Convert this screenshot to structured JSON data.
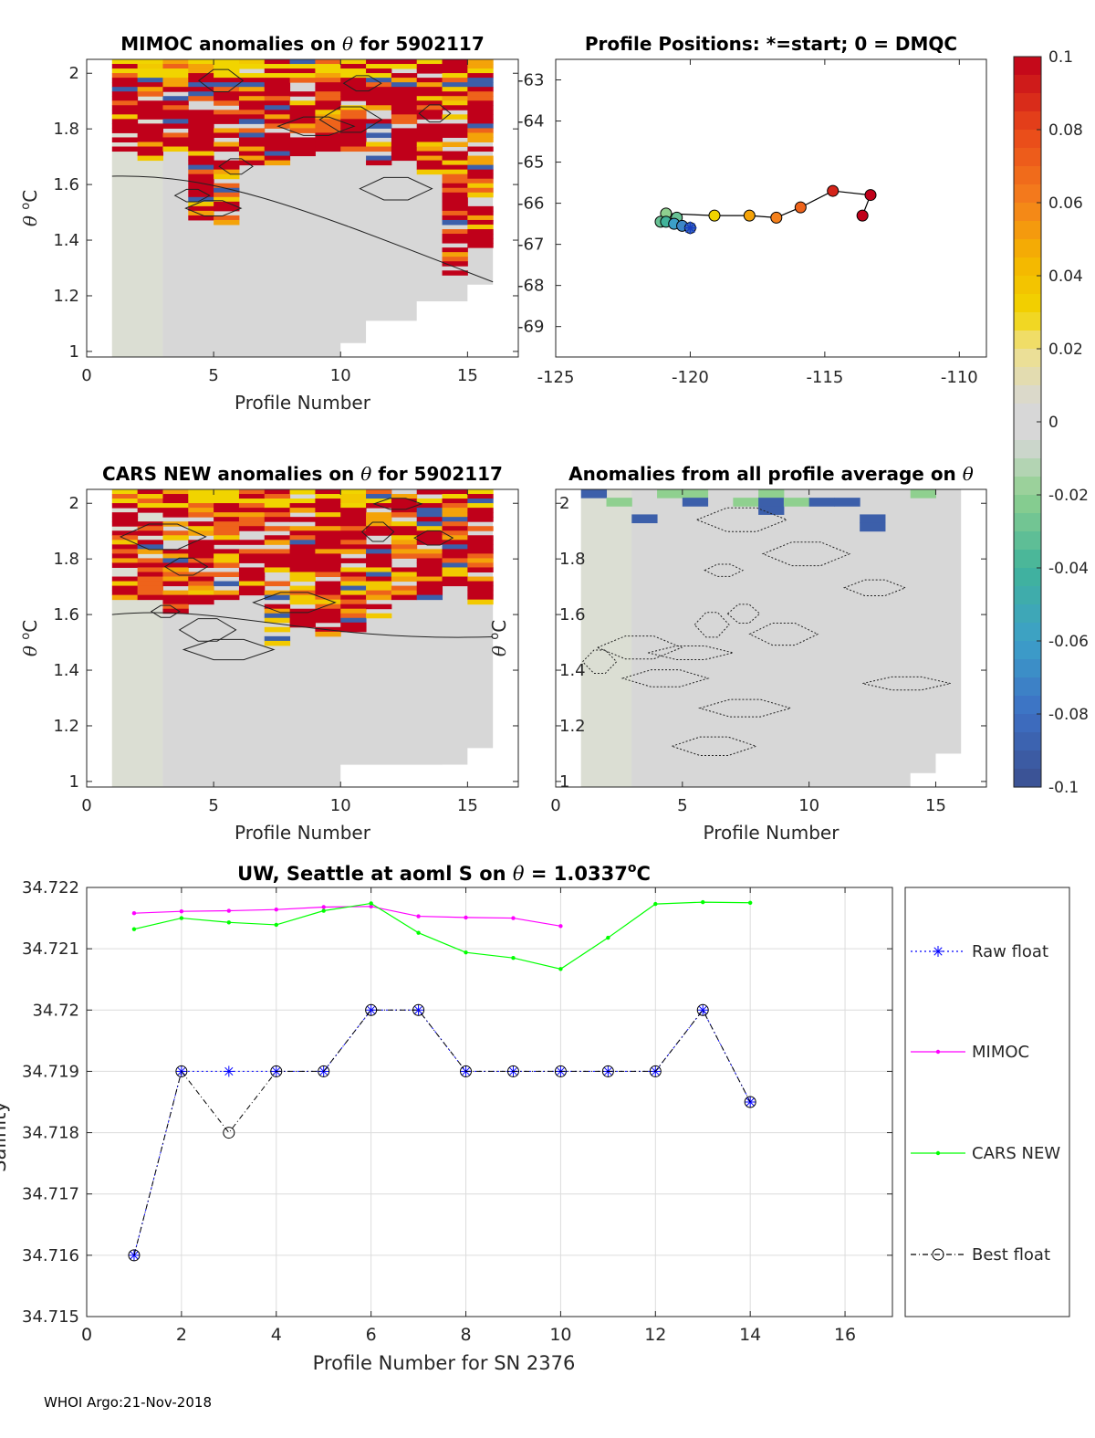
{
  "footer": "WHOI Argo:21-Nov-2018",
  "colors": {
    "magenta": "#ff00ff",
    "green": "#00ff00",
    "blue": "#0000ff",
    "black": "#000000",
    "grey_fill": "#d9d9d9"
  },
  "chart_data": [
    {
      "id": "mimoc",
      "type": "heatmap",
      "title": "MIMOC anomalies on θ  for 5902117",
      "xlabel": "Profile Number",
      "ylabel": "θ °C",
      "xlim": [
        0,
        17
      ],
      "ylim": [
        0.98,
        2.05
      ],
      "xticks": [
        0,
        5,
        10,
        15
      ],
      "yticks": [
        1,
        1.2,
        1.4,
        1.6,
        1.8,
        2
      ],
      "profiles": 16,
      "pattern": "positive anomalies (0.05–0.1) in upper θ band, near zero below"
    },
    {
      "id": "positions",
      "type": "scatter",
      "title": "Profile Positions: *=start; 0 = DMQC",
      "xlim": [
        -125,
        -108.993
      ],
      "ylim": [
        -69.74,
        -62.5
      ],
      "xticks": [
        -125,
        -120,
        -115,
        -110
      ],
      "yticks": [
        -63,
        -64,
        -65,
        -66,
        -67,
        -68,
        -69
      ],
      "x": [
        -120,
        -120.3,
        -120.6,
        -120.9,
        -121.1,
        -120.5,
        -120.9,
        -119.1,
        -117.8,
        -116.8,
        -115.9,
        -114.7,
        -113.3,
        -113.6
      ],
      "y": [
        -66.6,
        -66.55,
        -66.5,
        -66.45,
        -66.45,
        -66.35,
        -66.25,
        -66.3,
        -66.3,
        -66.35,
        -66.1,
        -65.7,
        -65.8,
        -66.3
      ],
      "values": [
        -0.08,
        -0.07,
        -0.06,
        -0.04,
        -0.03,
        -0.03,
        -0.02,
        0.03,
        0.05,
        0.06,
        0.07,
        0.09,
        0.1,
        0.1
      ]
    },
    {
      "id": "cars",
      "type": "heatmap",
      "title": "CARS NEW anomalies on θ for 5902117",
      "xlabel": "Profile Number",
      "ylabel": "θ °C",
      "xlim": [
        0,
        17
      ],
      "ylim": [
        0.98,
        2.05
      ],
      "xticks": [
        0,
        5,
        10,
        15
      ],
      "yticks": [
        1,
        1.2,
        1.4,
        1.6,
        1.8,
        2
      ],
      "profiles": 16
    },
    {
      "id": "avg",
      "type": "heatmap",
      "title": "Anomalies from all profile average on θ",
      "xlabel": "Profile Number",
      "ylabel": "θ °C",
      "xlim": [
        0,
        17
      ],
      "ylim": [
        0.98,
        2.05
      ],
      "xticks": [
        0,
        5,
        10,
        15
      ],
      "yticks": [
        1,
        1.2,
        1.4,
        1.6,
        1.8,
        2
      ],
      "profiles": 16
    },
    {
      "id": "colorbar",
      "type": "colorbar",
      "clim": [
        -0.1,
        0.1
      ],
      "tick_labels": [
        "0.1",
        "0.08",
        "0.06",
        "0.04",
        "0.02",
        "0",
        "-0.02",
        "-0.04",
        "-0.06",
        "-0.08",
        "-0.1"
      ],
      "tick_values": [
        0.1,
        0.08,
        0.06,
        0.04,
        0.02,
        0,
        -0.02,
        -0.04,
        -0.06,
        -0.08,
        -0.1
      ]
    },
    {
      "id": "salinity",
      "type": "line",
      "title": "UW, Seattle at aoml S on θ = 1.0337°C",
      "title_parts": [
        "UW, Seattle at aoml S on ",
        "θ",
        " = 1.0337",
        "o",
        "C"
      ],
      "xlabel": "Profile Number for SN 2376",
      "ylabel": "Salinity",
      "xlim": [
        0,
        17
      ],
      "ylim": [
        34.715,
        34.722
      ],
      "xticks": [
        0,
        2,
        4,
        6,
        8,
        10,
        12,
        14,
        16
      ],
      "yticks": [
        34.715,
        34.716,
        34.717,
        34.718,
        34.719,
        34.72,
        34.721,
        34.722
      ],
      "ytick_labels": [
        "34.715",
        "34.716",
        "34.717",
        "34.718",
        "34.719",
        "34.72",
        "34.721",
        "34.722"
      ],
      "grid": true,
      "series": [
        {
          "name": "Raw float",
          "style": "blue dotted, asterisk",
          "x": [
            1,
            2,
            3,
            4,
            5,
            6,
            7,
            8,
            9,
            10,
            11,
            12,
            13,
            14
          ],
          "values": [
            34.716,
            34.719,
            34.719,
            34.719,
            34.719,
            34.72,
            34.72,
            34.719,
            34.719,
            34.719,
            34.719,
            34.719,
            34.72,
            34.7185
          ]
        },
        {
          "name": "MIMOC",
          "style": "magenta solid, dot",
          "x": [
            1,
            2,
            3,
            4,
            5,
            6,
            7,
            8,
            9,
            10
          ],
          "values": [
            34.72158,
            34.72161,
            34.72162,
            34.72164,
            34.72168,
            34.72169,
            34.72153,
            34.72151,
            34.7215,
            34.72137
          ]
        },
        {
          "name": "CARS NEW",
          "style": "green solid, dot",
          "x": [
            1,
            2,
            3,
            4,
            5,
            6,
            7,
            8,
            9,
            10,
            11,
            12,
            13,
            14
          ],
          "values": [
            34.72132,
            34.7215,
            34.72143,
            34.72139,
            34.72162,
            34.72174,
            34.72126,
            34.72094,
            34.72085,
            34.72067,
            34.72118,
            34.72173,
            34.72176,
            34.72175
          ]
        },
        {
          "name": "Best float",
          "style": "black dash-dot, circle",
          "x": [
            1,
            2,
            3,
            4,
            5,
            6,
            7,
            8,
            9,
            10,
            11,
            12,
            13,
            14
          ],
          "values": [
            34.716,
            34.719,
            34.718,
            34.719,
            34.719,
            34.72,
            34.72,
            34.719,
            34.719,
            34.719,
            34.719,
            34.719,
            34.72,
            34.7185
          ]
        }
      ],
      "legend_position": "right"
    }
  ]
}
